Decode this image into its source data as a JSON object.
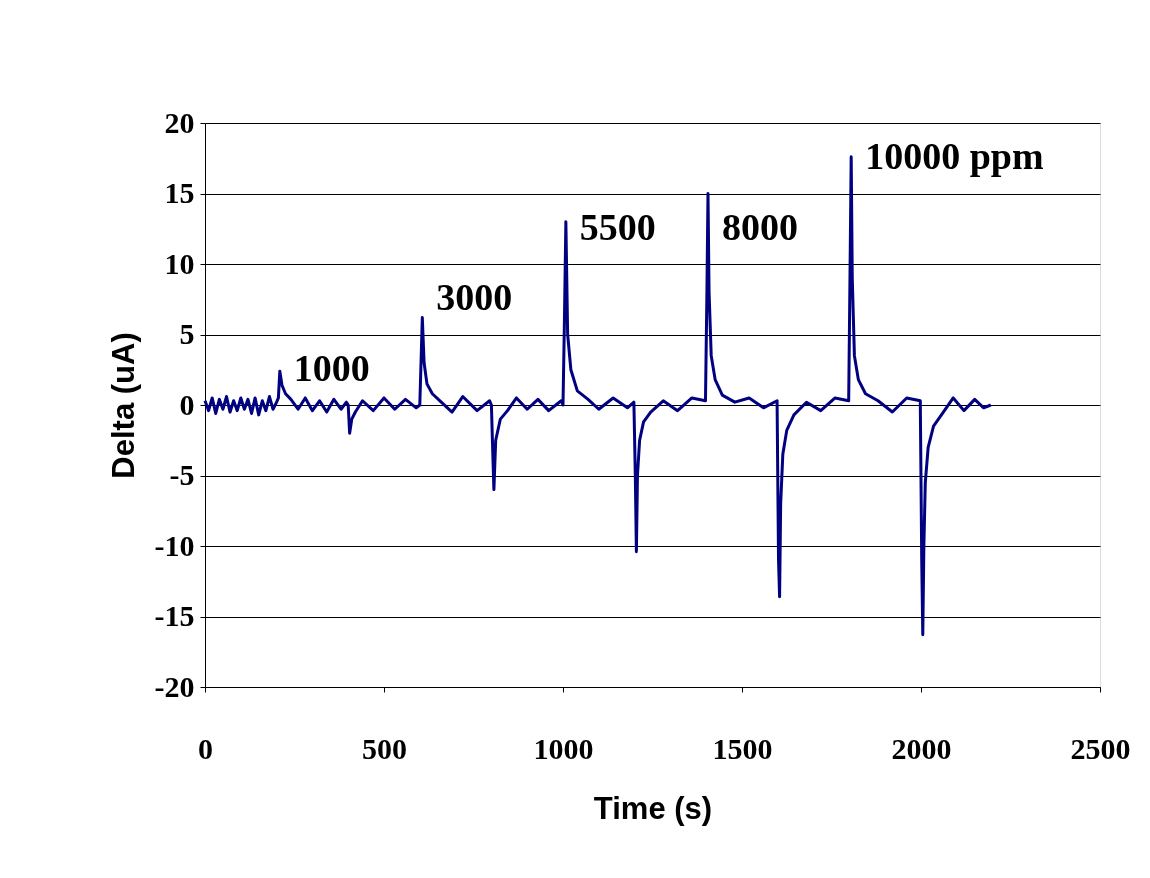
{
  "chart_data": {
    "type": "line",
    "xlabel": "Time (s)",
    "ylabel": "Delta (uA)",
    "xlim": [
      0,
      2500
    ],
    "xticks": [
      0,
      500,
      1000,
      1500,
      2000,
      2500
    ],
    "ylim": [
      -20,
      20
    ],
    "yticks": [
      -20,
      -15,
      -10,
      -5,
      0,
      5,
      10,
      15,
      20
    ],
    "grid": "y",
    "marker": "none",
    "line_style": "solid",
    "series": [
      {
        "color": "#000080",
        "x": [
          0,
          10,
          20,
          30,
          40,
          50,
          60,
          70,
          80,
          90,
          100,
          110,
          120,
          130,
          140,
          150,
          160,
          170,
          180,
          190,
          200,
          205,
          209,
          215,
          225,
          240,
          260,
          280,
          300,
          320,
          340,
          360,
          380,
          395,
          400,
          404,
          410,
          420,
          440,
          470,
          500,
          530,
          560,
          590,
          600,
          604,
          607,
          612,
          620,
          635,
          660,
          690,
          720,
          760,
          795,
          800,
          804,
          807,
          812,
          825,
          845,
          870,
          900,
          930,
          960,
          995,
          1000,
          1004,
          1008,
          1013,
          1022,
          1040,
          1070,
          1100,
          1140,
          1180,
          1198,
          1202,
          1205,
          1208,
          1214,
          1225,
          1245,
          1280,
          1320,
          1360,
          1398,
          1402,
          1405,
          1408,
          1414,
          1425,
          1445,
          1480,
          1520,
          1560,
          1598,
          1602,
          1605,
          1608,
          1614,
          1625,
          1645,
          1680,
          1720,
          1760,
          1798,
          1802,
          1805,
          1808,
          1814,
          1825,
          1845,
          1880,
          1920,
          1960,
          1998,
          2002,
          2005,
          2008,
          2012,
          2020,
          2035,
          2060,
          2090,
          2120,
          2150,
          2175,
          2195
        ],
        "values": [
          0.3,
          -0.4,
          0.5,
          -0.6,
          0.4,
          -0.3,
          0.6,
          -0.5,
          0.3,
          -0.4,
          0.5,
          -0.3,
          0.4,
          -0.6,
          0.5,
          -0.7,
          0.3,
          -0.4,
          0.6,
          -0.3,
          0.2,
          0.5,
          2.4,
          1.4,
          0.8,
          0.4,
          -0.3,
          0.5,
          -0.4,
          0.3,
          -0.5,
          0.4,
          -0.3,
          0.2,
          0.0,
          -2.0,
          -1.0,
          -0.5,
          0.3,
          -0.4,
          0.5,
          -0.3,
          0.4,
          -0.2,
          0.0,
          3.5,
          6.2,
          3.0,
          1.5,
          0.8,
          0.2,
          -0.5,
          0.6,
          -0.4,
          0.3,
          0.0,
          -3.5,
          -6.0,
          -2.5,
          -1.0,
          -0.4,
          0.5,
          -0.3,
          0.4,
          -0.4,
          0.3,
          0.0,
          6.0,
          13.0,
          5.0,
          2.5,
          1.0,
          0.4,
          -0.3,
          0.5,
          -0.2,
          0.2,
          -5.0,
          -10.4,
          -5.0,
          -2.5,
          -1.2,
          -0.5,
          0.3,
          -0.4,
          0.5,
          0.3,
          8.0,
          15.0,
          8.0,
          3.5,
          1.8,
          0.7,
          0.2,
          0.5,
          -0.2,
          0.3,
          -11.0,
          -13.6,
          -7.0,
          -3.5,
          -1.8,
          -0.7,
          0.2,
          -0.4,
          0.5,
          0.3,
          10.0,
          17.6,
          9.0,
          3.5,
          1.8,
          0.8,
          0.3,
          -0.5,
          0.5,
          0.3,
          -11.0,
          -16.3,
          -10.0,
          -5.5,
          -3.0,
          -1.5,
          -0.6,
          0.5,
          -0.4,
          0.4,
          -0.2,
          0.0
        ]
      }
    ],
    "annotations": [
      {
        "text": "1000",
        "x": 209,
        "y": 2.4
      },
      {
        "text": "3000",
        "x": 607,
        "y": 6.2
      },
      {
        "text": "5500",
        "x": 1008,
        "y": 13.0
      },
      {
        "text": "8000",
        "x": 1405,
        "y": 15.0
      },
      {
        "text": "10000 ppm",
        "x": 1805,
        "y": 17.6
      }
    ]
  }
}
